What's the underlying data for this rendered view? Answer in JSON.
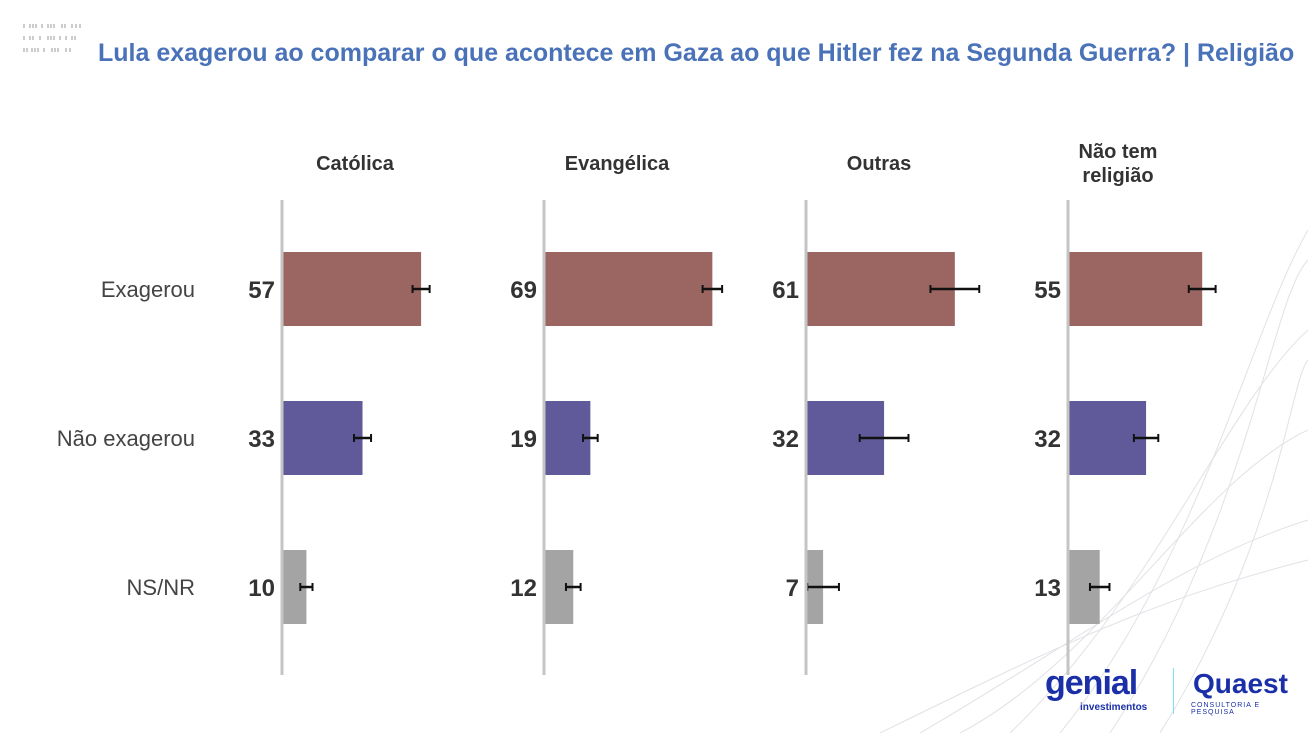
{
  "chart_data": {
    "type": "bar",
    "orientation": "horizontal",
    "title": "Lula exagerou ao comparar o que acontece em Gaza ao que Hitler fez na Segunda Guerra? | Religião",
    "categories": [
      "Exagerou",
      "Não exagerou",
      "NS/NR"
    ],
    "panels": [
      {
        "name": "Católica",
        "values": [
          57,
          33,
          10
        ],
        "errors": [
          3.5,
          3.5,
          2.5
        ]
      },
      {
        "name": "Evangélica",
        "values": [
          69,
          19,
          12
        ],
        "errors": [
          4,
          3,
          3
        ]
      },
      {
        "name": "Outras",
        "values": [
          61,
          32,
          7
        ],
        "errors": [
          10,
          10,
          6.5
        ]
      },
      {
        "name": "Não tem religião",
        "values": [
          55,
          32,
          13
        ],
        "errors": [
          5.5,
          5,
          4
        ]
      }
    ],
    "colors": [
      "#9b6661",
      "#605a9a",
      "#a4a4a4"
    ],
    "xlim": [
      0,
      100
    ],
    "grid": false,
    "legend": "none"
  },
  "logos": {
    "genial": "genial",
    "genial_sub": "investimentos",
    "quaest": "Quaest",
    "quaest_sub": "CONSULTORIA E PESQUISA"
  }
}
